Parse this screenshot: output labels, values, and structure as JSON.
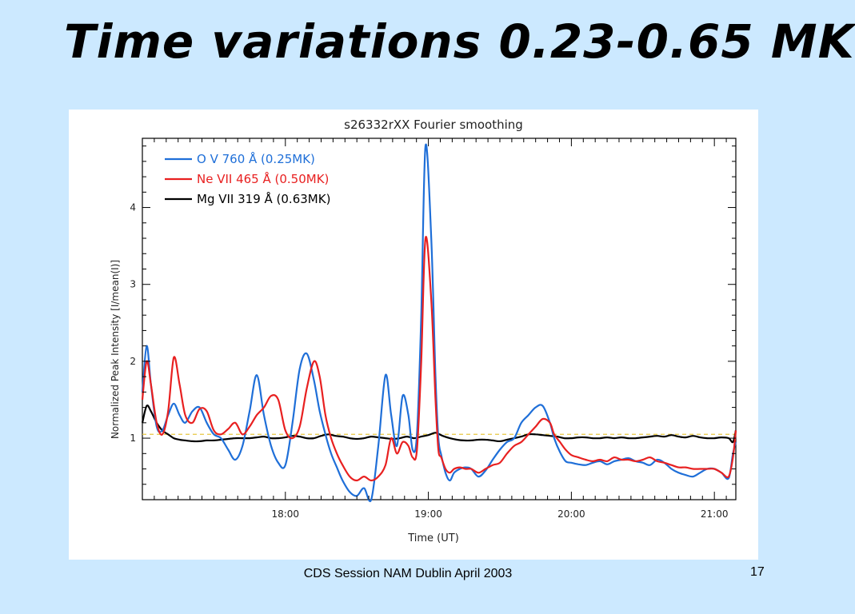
{
  "slide": {
    "title": "Time variations 0.23-0.65 MK",
    "footer": "CDS Session NAM Dublin April 2003",
    "page_number": "17",
    "background_color": "#cce9ff"
  },
  "chart_data": {
    "type": "line",
    "title": "s26332rXX   Fourier smoothing",
    "xlabel": "Time (UT)",
    "ylabel": "Normalized Peak Intensity [I/mean(I)]",
    "xlim": [
      17.0,
      21.15
    ],
    "ylim": [
      0.2,
      4.9
    ],
    "x_ticks": [
      {
        "value": 18.0,
        "label": "18:00"
      },
      {
        "value": 19.0,
        "label": "19:00"
      },
      {
        "value": 20.0,
        "label": "20:00"
      },
      {
        "value": 21.0,
        "label": "21:00"
      }
    ],
    "y_ticks": [
      {
        "value": 1,
        "label": "1"
      },
      {
        "value": 2,
        "label": "2"
      },
      {
        "value": 3,
        "label": "3"
      },
      {
        "value": 4,
        "label": "4"
      }
    ],
    "legend_position": "top-left",
    "reference_line": {
      "y": 1.05,
      "style": "dashed",
      "color": "#e8c840"
    },
    "series": [
      {
        "name": "O V 760 Å    (0.25MK)",
        "color": "#1f6fd8",
        "x": [
          17.0,
          17.03,
          17.06,
          17.1,
          17.14,
          17.18,
          17.22,
          17.26,
          17.3,
          17.35,
          17.4,
          17.45,
          17.5,
          17.55,
          17.6,
          17.65,
          17.7,
          17.75,
          17.8,
          17.85,
          17.9,
          17.95,
          18.0,
          18.05,
          18.1,
          18.15,
          18.2,
          18.24,
          18.28,
          18.32,
          18.36,
          18.4,
          18.45,
          18.5,
          18.55,
          18.6,
          18.65,
          18.7,
          18.74,
          18.78,
          18.82,
          18.86,
          18.89,
          18.92,
          18.95,
          18.98,
          19.02,
          19.05,
          19.07,
          19.09,
          19.12,
          19.15,
          19.18,
          19.22,
          19.26,
          19.3,
          19.35,
          19.4,
          19.45,
          19.5,
          19.55,
          19.6,
          19.65,
          19.7,
          19.75,
          19.8,
          19.85,
          19.88,
          19.92,
          19.96,
          20.0,
          20.05,
          20.1,
          20.15,
          20.2,
          20.25,
          20.3,
          20.35,
          20.4,
          20.45,
          20.5,
          20.55,
          20.6,
          20.65,
          20.7,
          20.75,
          20.8,
          20.85,
          20.9,
          20.95,
          21.0,
          21.05,
          21.1,
          21.13,
          21.15
        ],
        "y": [
          1.6,
          2.2,
          1.7,
          1.15,
          1.1,
          1.3,
          1.45,
          1.3,
          1.2,
          1.35,
          1.4,
          1.2,
          1.05,
          1.0,
          0.85,
          0.72,
          0.9,
          1.35,
          1.82,
          1.3,
          0.9,
          0.68,
          0.65,
          1.2,
          1.9,
          2.1,
          1.75,
          1.35,
          1.05,
          0.8,
          0.62,
          0.45,
          0.3,
          0.25,
          0.35,
          0.18,
          0.9,
          1.82,
          1.3,
          0.9,
          1.55,
          1.3,
          0.85,
          1.05,
          2.6,
          4.8,
          3.6,
          1.8,
          1.0,
          0.78,
          0.55,
          0.45,
          0.55,
          0.6,
          0.62,
          0.6,
          0.5,
          0.58,
          0.72,
          0.85,
          0.95,
          1.0,
          1.2,
          1.3,
          1.4,
          1.42,
          1.2,
          1.0,
          0.82,
          0.7,
          0.68,
          0.66,
          0.65,
          0.68,
          0.7,
          0.66,
          0.7,
          0.72,
          0.74,
          0.7,
          0.68,
          0.65,
          0.72,
          0.68,
          0.6,
          0.55,
          0.52,
          0.5,
          0.55,
          0.6,
          0.6,
          0.55,
          0.48,
          0.8,
          0.95
        ]
      },
      {
        "name": "Ne VII 465 Å   (0.50MK)",
        "color": "#e82020",
        "x": [
          17.0,
          17.03,
          17.06,
          17.1,
          17.14,
          17.18,
          17.22,
          17.26,
          17.3,
          17.35,
          17.4,
          17.45,
          17.5,
          17.55,
          17.6,
          17.65,
          17.7,
          17.75,
          17.8,
          17.85,
          17.9,
          17.95,
          18.0,
          18.05,
          18.1,
          18.15,
          18.2,
          18.24,
          18.28,
          18.32,
          18.36,
          18.4,
          18.45,
          18.5,
          18.55,
          18.6,
          18.65,
          18.7,
          18.74,
          18.78,
          18.82,
          18.86,
          18.89,
          18.92,
          18.95,
          18.98,
          19.02,
          19.05,
          19.07,
          19.09,
          19.12,
          19.15,
          19.18,
          19.22,
          19.26,
          19.3,
          19.35,
          19.4,
          19.45,
          19.5,
          19.55,
          19.6,
          19.65,
          19.7,
          19.75,
          19.8,
          19.85,
          19.88,
          19.92,
          19.96,
          20.0,
          20.05,
          20.1,
          20.15,
          20.2,
          20.25,
          20.3,
          20.35,
          20.4,
          20.45,
          20.5,
          20.55,
          20.6,
          20.65,
          20.7,
          20.75,
          20.8,
          20.85,
          20.9,
          20.95,
          21.0,
          21.05,
          21.1,
          21.13,
          21.15
        ],
        "y": [
          1.5,
          2.0,
          1.7,
          1.2,
          1.05,
          1.35,
          2.05,
          1.7,
          1.3,
          1.2,
          1.38,
          1.35,
          1.1,
          1.05,
          1.12,
          1.2,
          1.05,
          1.15,
          1.3,
          1.4,
          1.55,
          1.5,
          1.1,
          1.0,
          1.15,
          1.65,
          2.0,
          1.8,
          1.3,
          1.0,
          0.8,
          0.65,
          0.5,
          0.45,
          0.5,
          0.45,
          0.5,
          0.65,
          1.0,
          0.8,
          0.95,
          0.9,
          0.75,
          0.85,
          2.0,
          3.6,
          2.8,
          1.5,
          0.85,
          0.75,
          0.6,
          0.55,
          0.6,
          0.62,
          0.6,
          0.6,
          0.55,
          0.6,
          0.65,
          0.68,
          0.8,
          0.9,
          0.95,
          1.05,
          1.15,
          1.25,
          1.2,
          1.05,
          0.95,
          0.85,
          0.78,
          0.75,
          0.72,
          0.7,
          0.72,
          0.7,
          0.75,
          0.72,
          0.72,
          0.7,
          0.72,
          0.75,
          0.7,
          0.68,
          0.65,
          0.62,
          0.62,
          0.6,
          0.6,
          0.6,
          0.6,
          0.55,
          0.5,
          0.75,
          1.1
        ]
      },
      {
        "name": "Mg VII 319 Å (0.63MK)",
        "color": "#000000",
        "x": [
          17.0,
          17.03,
          17.06,
          17.1,
          17.14,
          17.18,
          17.22,
          17.26,
          17.3,
          17.35,
          17.4,
          17.45,
          17.5,
          17.55,
          17.6,
          17.65,
          17.7,
          17.75,
          17.8,
          17.85,
          17.9,
          17.95,
          18.0,
          18.05,
          18.1,
          18.15,
          18.2,
          18.25,
          18.3,
          18.35,
          18.4,
          18.45,
          18.5,
          18.55,
          18.6,
          18.65,
          18.7,
          18.75,
          18.8,
          18.85,
          18.9,
          18.95,
          19.0,
          19.05,
          19.1,
          19.15,
          19.2,
          19.25,
          19.3,
          19.35,
          19.4,
          19.45,
          19.5,
          19.55,
          19.6,
          19.65,
          19.7,
          19.75,
          19.8,
          19.85,
          19.9,
          19.95,
          20.0,
          20.05,
          20.1,
          20.15,
          20.2,
          20.25,
          20.3,
          20.35,
          20.4,
          20.45,
          20.5,
          20.55,
          20.6,
          20.65,
          20.7,
          20.75,
          20.8,
          20.85,
          20.9,
          20.95,
          21.0,
          21.05,
          21.1,
          21.13,
          21.15
        ],
        "y": [
          1.2,
          1.42,
          1.35,
          1.2,
          1.1,
          1.05,
          1.0,
          0.98,
          0.97,
          0.96,
          0.96,
          0.97,
          0.97,
          0.98,
          0.99,
          1.0,
          1.0,
          1.0,
          1.01,
          1.02,
          1.0,
          1.0,
          1.01,
          1.03,
          1.02,
          1.0,
          1.0,
          1.03,
          1.05,
          1.03,
          1.02,
          1.0,
          0.99,
          1.0,
          1.02,
          1.01,
          1.0,
          0.99,
          1.0,
          1.02,
          1.0,
          1.02,
          1.04,
          1.07,
          1.03,
          1.0,
          0.98,
          0.97,
          0.97,
          0.98,
          0.98,
          0.97,
          0.96,
          0.98,
          1.0,
          1.02,
          1.05,
          1.05,
          1.04,
          1.03,
          1.02,
          1.0,
          1.0,
          1.01,
          1.01,
          1.0,
          1.0,
          1.01,
          1.0,
          1.01,
          1.0,
          1.0,
          1.01,
          1.02,
          1.03,
          1.02,
          1.04,
          1.02,
          1.01,
          1.03,
          1.01,
          1.0,
          1.0,
          1.01,
          1.0,
          0.95,
          1.1
        ]
      }
    ]
  }
}
